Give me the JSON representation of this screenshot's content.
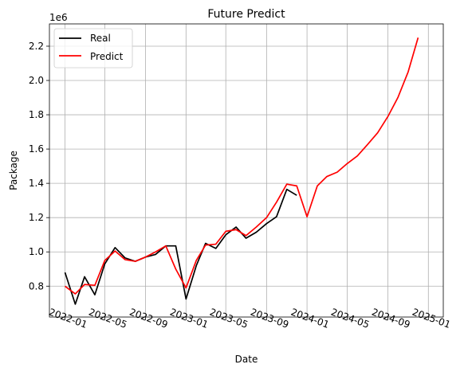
{
  "chart_data": {
    "type": "line",
    "title": "Future Predict",
    "xlabel": "Date",
    "ylabel": "Package",
    "offset_text": "1e6",
    "y_scale_factor": 1000000,
    "ylim": [
      620000,
      2330000
    ],
    "xlim": [
      "2021-11-15",
      "2025-02-15"
    ],
    "grid": true,
    "legend_position": "top-left",
    "x_ticks": [
      "2022-01",
      "2022-05",
      "2022-09",
      "2023-01",
      "2023-05",
      "2023-09",
      "2024-01",
      "2024-05",
      "2024-09",
      "2025-01"
    ],
    "y_ticks": [
      800000,
      1000000,
      1200000,
      1400000,
      1600000,
      1800000,
      2000000,
      2200000
    ],
    "y_tick_labels": [
      "0.8",
      "1.0",
      "1.2",
      "1.4",
      "1.6",
      "1.8",
      "2.0",
      "2.2"
    ],
    "series": [
      {
        "name": "Real",
        "color": "#000000",
        "x": [
          "2022-01",
          "2022-02",
          "2022-03",
          "2022-04",
          "2022-05",
          "2022-06",
          "2022-07",
          "2022-08",
          "2022-09",
          "2022-10",
          "2022-11",
          "2022-12",
          "2023-01",
          "2023-02",
          "2023-03",
          "2023-04",
          "2023-05",
          "2023-06",
          "2023-07",
          "2023-08",
          "2023-09",
          "2023-10",
          "2023-11",
          "2023-12"
        ],
        "y": [
          880000,
          695000,
          855000,
          750000,
          930000,
          1025000,
          965000,
          945000,
          970000,
          985000,
          1035000,
          1035000,
          725000,
          920000,
          1050000,
          1020000,
          1100000,
          1145000,
          1080000,
          1115000,
          1165000,
          1205000,
          1365000,
          1330000
        ]
      },
      {
        "name": "Predict",
        "color": "#ff0000",
        "x": [
          "2022-01",
          "2022-02",
          "2022-03",
          "2022-04",
          "2022-05",
          "2022-06",
          "2022-07",
          "2022-08",
          "2022-09",
          "2022-10",
          "2022-11",
          "2022-12",
          "2023-01",
          "2023-02",
          "2023-03",
          "2023-04",
          "2023-05",
          "2023-06",
          "2023-07",
          "2023-08",
          "2023-09",
          "2023-10",
          "2023-11",
          "2023-12",
          "2024-01",
          "2024-02",
          "2024-03",
          "2024-04",
          "2024-05",
          "2024-06",
          "2024-07",
          "2024-08",
          "2024-09",
          "2024-10",
          "2024-11",
          "2024-12"
        ],
        "y": [
          800000,
          755000,
          810000,
          805000,
          950000,
          1005000,
          955000,
          945000,
          970000,
          1000000,
          1035000,
          900000,
          790000,
          950000,
          1040000,
          1045000,
          1120000,
          1130000,
          1095000,
          1145000,
          1200000,
          1290000,
          1395000,
          1385000,
          1205000,
          1385000,
          1440000,
          1465000,
          1515000,
          1560000,
          1625000,
          1695000,
          1790000,
          1900000,
          2050000,
          2250000
        ]
      }
    ]
  }
}
